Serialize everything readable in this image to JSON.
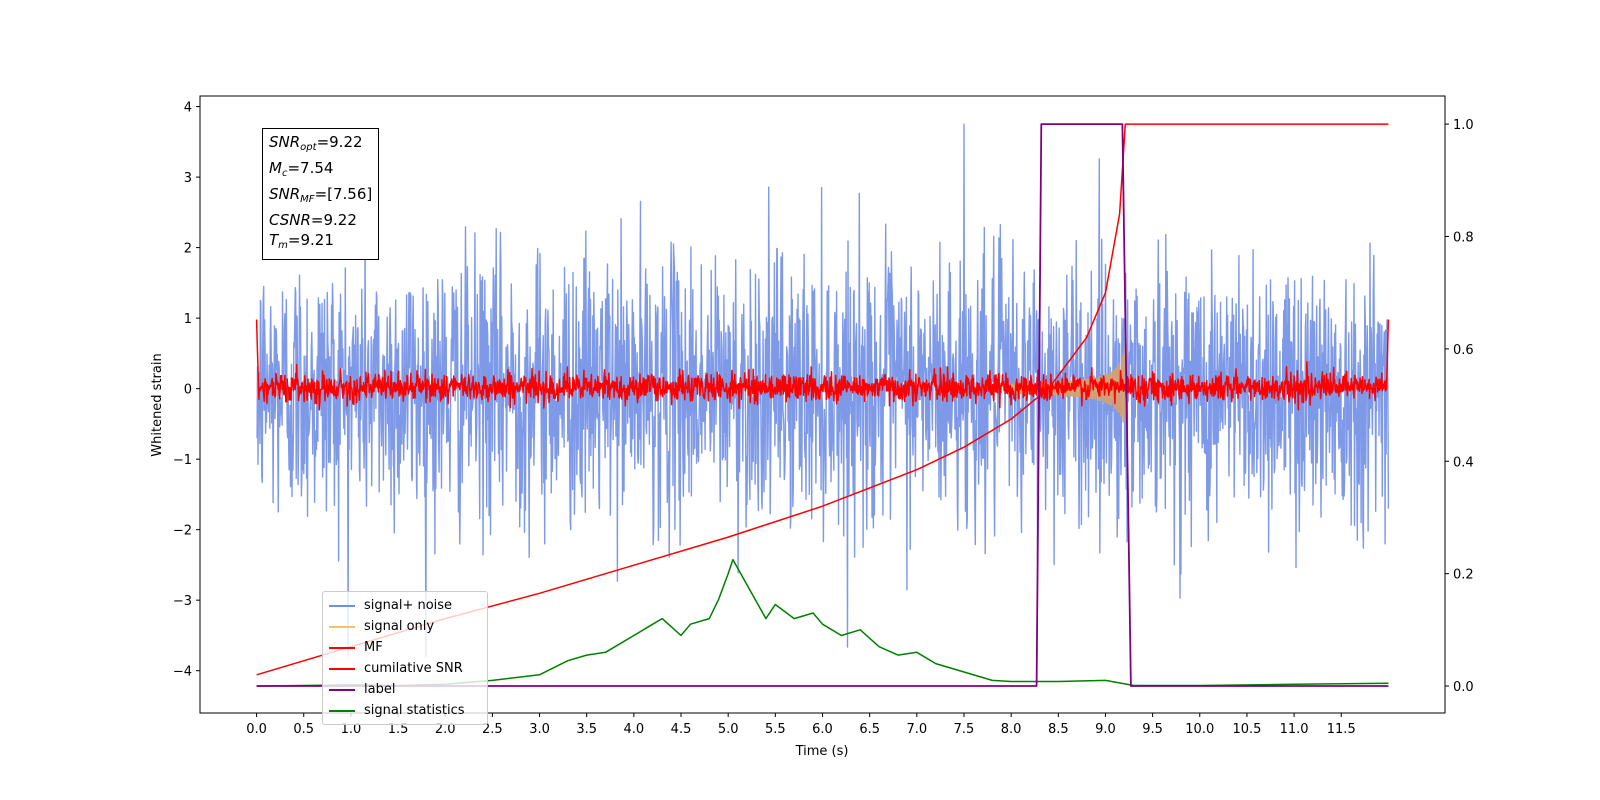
{
  "chart_data": {
    "type": "line",
    "xlabel": "Time (s)",
    "ylabel": "Whitened strain",
    "xlim": [
      -0.6,
      12.6
    ],
    "ylim": [
      -4.6,
      4.15
    ],
    "y2lim": [
      -0.048,
      1.05
    ],
    "xticks": [
      0.0,
      0.5,
      1.0,
      1.5,
      2.0,
      2.5,
      3.0,
      3.5,
      4.0,
      4.5,
      5.0,
      5.5,
      6.0,
      6.5,
      7.0,
      7.5,
      8.0,
      8.5,
      9.0,
      9.5,
      10.0,
      10.5,
      11.0,
      11.5
    ],
    "xtick_labels": [
      "0.0",
      "0.5",
      "1.0",
      "1.5",
      "2.0",
      "2.5",
      "3.0",
      "3.5",
      "4.0",
      "4.5",
      "5.0",
      "5.5",
      "6.0",
      "6.5",
      "7.0",
      "7.5",
      "8.0",
      "8.5",
      "9.0",
      "9.5",
      "10.0",
      "10.5",
      "11.0",
      "11.5"
    ],
    "yticks": [
      -4,
      -3,
      -2,
      -1,
      0,
      1,
      2,
      3,
      4
    ],
    "ytick_labels": [
      "−4",
      "−3",
      "−2",
      "−1",
      "0",
      "1",
      "2",
      "3",
      "4"
    ],
    "y2ticks": [
      0.0,
      0.2,
      0.4,
      0.6,
      0.8,
      1.0
    ],
    "y2tick_labels": [
      "0.0",
      "0.2",
      "0.4",
      "0.6",
      "0.8",
      "1.0"
    ],
    "grid": false,
    "legend_position": "lower-left",
    "series": [
      {
        "name": "signal+ noise",
        "color": "#6f8ee6",
        "axis": "left",
        "description_values": {
          "x_range": [
            0,
            12
          ],
          "amplitude_typical": 1.0,
          "max": 3.78,
          "min": -3.5
        }
      },
      {
        "name": "signal only",
        "color": "#f5c26b",
        "axis": "left",
        "description_values": {
          "chirp_start": 8.0,
          "merger": 9.21,
          "peak_amplitude": 0.65
        }
      },
      {
        "name": "MF",
        "color": "#ff0000",
        "axis": "left",
        "description_values": {
          "x_range": [
            0,
            12
          ],
          "amplitude_typical": 0.1,
          "max": 0.98
        }
      },
      {
        "name": "cumilative SNR",
        "color": "#ff0000",
        "axis": "right",
        "x": [
          0.0,
          1.0,
          2.0,
          3.0,
          4.0,
          5.0,
          6.0,
          7.0,
          7.5,
          8.0,
          8.4,
          8.8,
          9.0,
          9.15,
          9.21,
          12.0
        ],
        "values": [
          0.02,
          0.07,
          0.12,
          0.165,
          0.215,
          0.265,
          0.32,
          0.385,
          0.425,
          0.475,
          0.53,
          0.62,
          0.7,
          0.84,
          1.0,
          1.0
        ]
      },
      {
        "name": "label",
        "color": "#800080",
        "axis": "right",
        "x": [
          0.0,
          8.27,
          8.32,
          9.18,
          9.27,
          12.0
        ],
        "values": [
          0.0,
          0.0,
          1.0,
          1.0,
          0.0,
          0.0
        ]
      },
      {
        "name": "signal statistics",
        "color": "#008000",
        "axis": "right",
        "x": [
          0.0,
          0.5,
          1.0,
          1.5,
          2.0,
          2.5,
          3.0,
          3.3,
          3.5,
          3.7,
          3.8,
          4.0,
          4.2,
          4.3,
          4.5,
          4.6,
          4.8,
          4.9,
          5.0,
          5.05,
          5.2,
          5.4,
          5.5,
          5.7,
          5.9,
          6.0,
          6.2,
          6.4,
          6.6,
          6.8,
          7.0,
          7.2,
          7.5,
          7.8,
          8.0,
          8.5,
          9.0,
          9.3,
          10.0,
          11.0,
          12.0
        ],
        "values": [
          0.0,
          0.001,
          0.002,
          0.001,
          0.003,
          0.01,
          0.02,
          0.045,
          0.055,
          0.06,
          0.07,
          0.09,
          0.11,
          0.12,
          0.09,
          0.11,
          0.12,
          0.155,
          0.2,
          0.225,
          0.18,
          0.12,
          0.145,
          0.12,
          0.13,
          0.11,
          0.09,
          0.1,
          0.07,
          0.055,
          0.06,
          0.04,
          0.025,
          0.01,
          0.008,
          0.008,
          0.01,
          0.001,
          0.001,
          0.003,
          0.005
        ]
      }
    ]
  },
  "stats": {
    "snr_opt_sym": "SNR",
    "snr_opt_sub": "opt",
    "snr_opt_val": "=9.22",
    "mc_sym": "M",
    "mc_sub": "c",
    "mc_val": "=7.54",
    "snr_mf_sym": "SNR",
    "snr_mf_sub": "MF",
    "snr_mf_val": "=[7.56]",
    "csnr_sym": "CSNR",
    "csnr_val": "=9.22",
    "tm_sym": "T",
    "tm_sub": "m",
    "tm_val": "=9.21"
  },
  "legend": {
    "items": [
      {
        "label": "signal+ noise",
        "color": "#6f8ee6"
      },
      {
        "label": "signal only",
        "color": "#f5c26b"
      },
      {
        "label": "MF",
        "color": "#ff0000"
      },
      {
        "label": "cumilative SNR",
        "color": "#ff0000"
      },
      {
        "label": "label",
        "color": "#800080"
      },
      {
        "label": "signal statistics",
        "color": "#008000"
      }
    ]
  }
}
